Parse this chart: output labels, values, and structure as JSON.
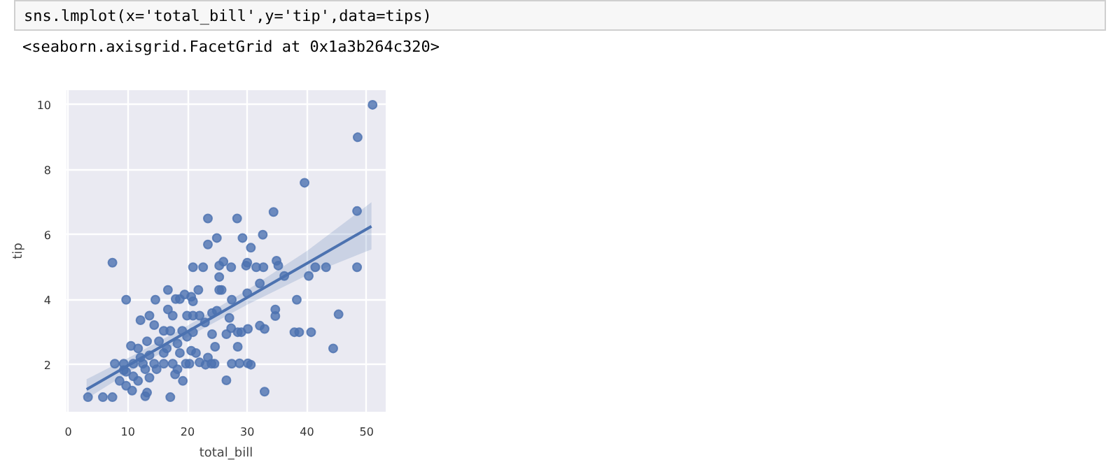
{
  "chart_data": {
    "type": "scatter",
    "xlabel": "total_bill",
    "ylabel": "tip",
    "annotations": [
      "sns.lmplot(x='total_bill',y='tip',data=tips)",
      "<seaborn.axisgrid.FacetGrid at 0x1a3b264c320>"
    ],
    "xlim": [
      -0.3,
      53.2
    ],
    "ylim": [
      0.55,
      10.45
    ],
    "xticks": [
      0,
      10,
      20,
      30,
      40,
      50
    ],
    "yticks": [
      2,
      4,
      6,
      8,
      10
    ],
    "grid": true,
    "series": [
      {
        "color": "#4c72b0",
        "marker": "circle",
        "x": [
          3.3,
          5.8,
          7.4,
          7.4,
          9.7,
          14.6,
          16.7,
          23.4,
          23.4,
          24.9,
          28.3,
          29.2,
          30.6,
          32.6,
          34.4,
          39.6,
          48.5,
          51.0,
          48.4,
          48.4,
          43.2,
          41.4,
          40.3,
          36.2,
          34.9,
          35.2,
          31.5,
          32.7,
          30.0,
          29.8,
          27.3,
          26.0,
          25.3,
          22.6,
          20.9,
          25.7,
          25.3,
          25.3,
          32.1,
          30.0,
          38.3,
          27.4,
          34.7,
          34.7,
          45.3,
          44.4,
          40.7,
          38.7,
          37.9,
          32.9,
          32.1,
          30.1,
          28.4,
          29.0,
          27.3,
          27.0,
          26.5,
          24.1,
          24.6,
          28.4,
          28.7,
          30.1,
          30.6,
          27.4,
          24.5,
          24.0,
          23.0,
          22.0,
          20.3,
          19.7,
          26.5,
          32.9,
          17.1,
          12.9,
          13.2,
          19.2,
          17.9,
          18.3,
          17.5,
          16.0,
          14.4,
          12.5,
          10.9,
          9.3,
          7.8,
          8.6,
          9.7,
          10.7,
          11.7,
          13.6,
          10.9,
          9.7,
          12.1,
          13.6,
          10.5,
          11.7,
          13.2,
          12.1,
          13.6,
          14.4,
          16.0,
          17.1,
          17.5,
          16.7,
          18.0,
          18.7,
          19.5,
          20.6,
          21.8,
          20.9,
          19.9,
          20.9,
          22.0,
          22.9,
          24.1,
          24.9,
          19.1,
          20.9,
          19.9,
          20.6,
          18.3,
          16.5,
          15.2,
          16.0,
          18.7,
          21.4,
          23.4,
          9.3,
          12.9,
          14.8
        ],
        "values": [
          1.0,
          1.0,
          1.0,
          5.14,
          4.0,
          4.0,
          4.3,
          6.5,
          5.7,
          5.9,
          6.5,
          5.9,
          5.6,
          6.0,
          6.7,
          7.6,
          9.0,
          10.0,
          6.73,
          5.0,
          5.0,
          5.0,
          4.73,
          4.73,
          5.2,
          5.05,
          5.0,
          5.0,
          5.14,
          5.05,
          5.0,
          5.17,
          5.05,
          5.0,
          5.0,
          4.3,
          4.3,
          4.7,
          4.5,
          4.2,
          4.0,
          4.0,
          3.7,
          3.5,
          3.55,
          2.5,
          3.0,
          3.0,
          3.0,
          3.1,
          3.2,
          3.1,
          3.0,
          3.0,
          3.12,
          3.44,
          2.94,
          2.94,
          2.55,
          2.55,
          2.04,
          2.04,
          2.0,
          2.03,
          2.03,
          2.03,
          2.0,
          2.07,
          2.03,
          2.03,
          1.52,
          1.17,
          1.0,
          1.03,
          1.14,
          1.5,
          1.7,
          1.86,
          2.03,
          2.03,
          2.03,
          2.03,
          2.03,
          2.03,
          2.03,
          1.5,
          1.35,
          1.2,
          1.5,
          1.6,
          1.64,
          1.78,
          2.22,
          2.29,
          2.58,
          2.5,
          2.72,
          3.37,
          3.51,
          3.22,
          3.04,
          3.04,
          3.51,
          3.7,
          4.02,
          4.02,
          4.16,
          4.09,
          4.3,
          3.95,
          3.51,
          3.51,
          3.51,
          3.3,
          3.59,
          3.66,
          3.04,
          3.0,
          2.86,
          2.43,
          2.65,
          2.5,
          2.72,
          2.36,
          2.36,
          2.36,
          2.22,
          1.83,
          1.86,
          1.86
        ]
      },
      {
        "type": "line",
        "marker": "none",
        "color": "#4c72b0",
        "x": [
          3.07,
          10,
          20,
          30,
          40,
          50.81
        ],
        "values": [
          1.24,
          1.97,
          3.02,
          4.07,
          5.12,
          6.26
        ],
        "lower": [
          0.95,
          1.75,
          2.85,
          3.85,
          4.75,
          5.55
        ],
        "upper": [
          1.55,
          2.2,
          3.2,
          4.3,
          5.5,
          7.0
        ]
      }
    ]
  }
}
